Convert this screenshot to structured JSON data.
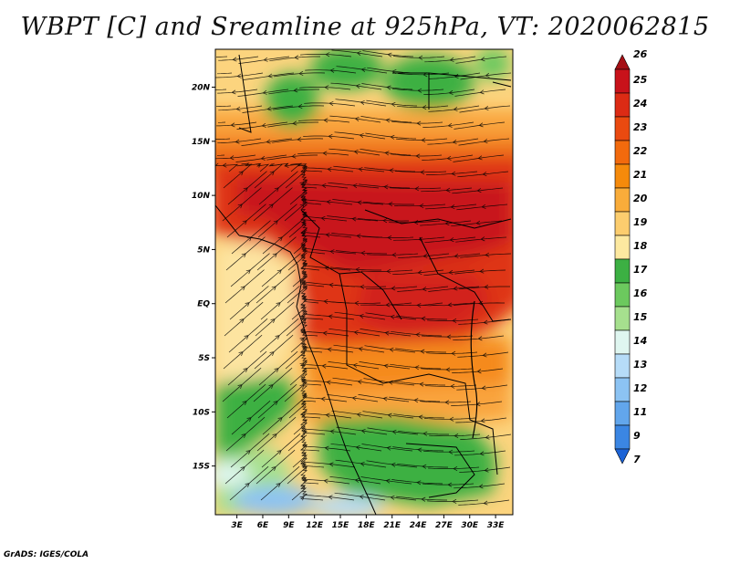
{
  "title": "WBPT [C] and Sreamline at 925hPa, VT: 2020062815",
  "credit": "GrADS: IGES/COLA",
  "map": {
    "lat_labels": [
      "20N",
      "15N",
      "10N",
      "5N",
      "EQ",
      "5S",
      "10S",
      "15S"
    ],
    "lat_values": [
      20,
      15,
      10,
      5,
      0,
      -5,
      -10,
      -15
    ],
    "lon_labels": [
      "3E",
      "6E",
      "9E",
      "12E",
      "15E",
      "18E",
      "21E",
      "24E",
      "27E",
      "30E",
      "33E"
    ],
    "lon_values": [
      3,
      6,
      9,
      12,
      15,
      18,
      21,
      24,
      27,
      30,
      33
    ],
    "lon_range": [
      0.5,
      35
    ],
    "lat_range": [
      -19.5,
      23.5
    ]
  },
  "colorbar": {
    "labels": [
      "26",
      "25",
      "24",
      "23",
      "22",
      "21",
      "20",
      "19",
      "18",
      "17",
      "16",
      "15",
      "14",
      "13",
      "12",
      "11",
      "9",
      "7"
    ],
    "colors": [
      "#a50f15",
      "#c8121a",
      "#dc2b14",
      "#ea4a10",
      "#f26a0d",
      "#f58a0b",
      "#f9ac3a",
      "#fccd6e",
      "#fde9a0",
      "#3cb043",
      "#6cc95e",
      "#a6e08e",
      "#dff6f0",
      "#b6dcf8",
      "#8cc3f3",
      "#62a6ec",
      "#3b86e3",
      "#1c63d6"
    ]
  }
}
